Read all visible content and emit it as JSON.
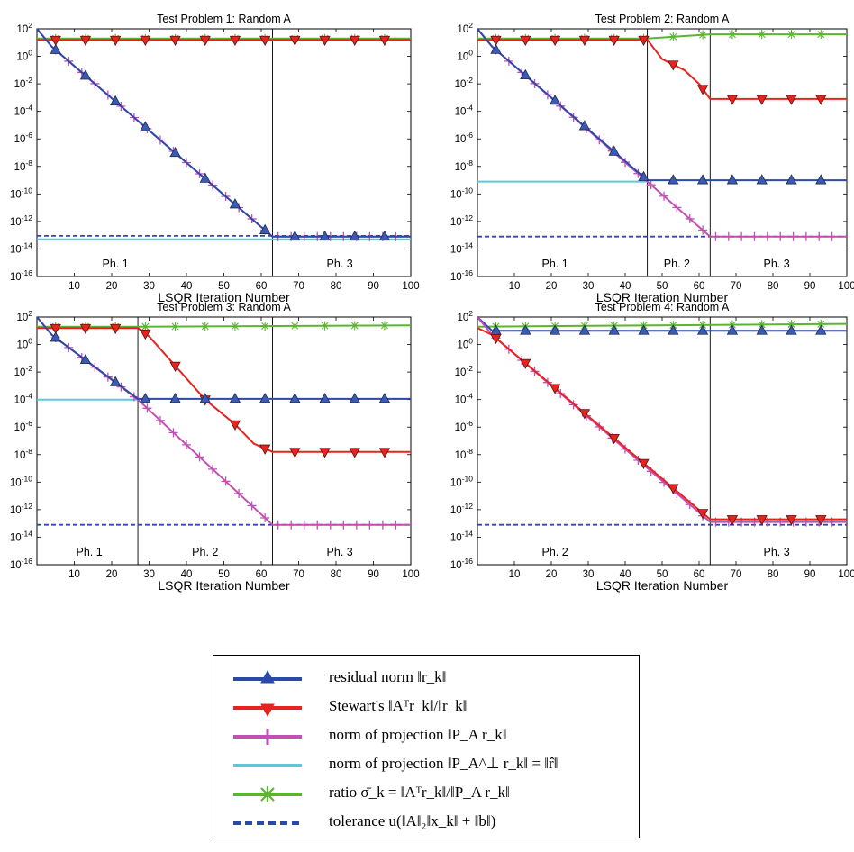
{
  "figure": {
    "legend": [
      {
        "key": "residual",
        "label": "residual norm ‖r_k‖",
        "color": "#2b4aa8",
        "marker": "triangle-up"
      },
      {
        "key": "stewart",
        "label": "Stewart's ‖Aᵀr_k‖/‖r_k‖",
        "color": "#e8231f",
        "marker": "triangle-down"
      },
      {
        "key": "proj",
        "label": "norm of projection ‖P_A r_k‖",
        "color": "#c24fb3",
        "marker": "plus"
      },
      {
        "key": "projperp",
        "label": "norm of projection ‖P_A^⊥ r_k‖ = ‖r̂‖",
        "color": "#5fc8d6",
        "marker": "none"
      },
      {
        "key": "ratio",
        "label": "ratio σ̄_k = ‖Aᵀr_k‖/‖P_A r_k‖",
        "color": "#5cb531",
        "marker": "asterisk"
      },
      {
        "key": "tol",
        "label": "tolerance u(‖A‖₂‖x_k‖ + ‖b‖)",
        "color": "#2b4aa8",
        "marker": "dashed"
      }
    ]
  },
  "chart_data": [
    {
      "type": "line",
      "title": "Test Problem 1: Random A",
      "xlabel": "LSQR Iteration Number",
      "ylabel": "",
      "xlim": [
        0,
        100
      ],
      "ylim_exp": [
        -16,
        2
      ],
      "yscale": "log",
      "xticks": [
        10,
        20,
        30,
        40,
        50,
        60,
        70,
        80,
        90,
        100
      ],
      "yticks_exp": [
        2,
        0,
        -2,
        -4,
        -6,
        -8,
        -10,
        -12,
        -14,
        -16
      ],
      "phase_lines": [
        63
      ],
      "phase_labels": [
        {
          "x": 21,
          "text": "Ph. 1"
        },
        {
          "x": 81,
          "text": "Ph. 3"
        }
      ],
      "series": [
        {
          "key": "ratio",
          "points": [
            [
              0,
              1.3
            ],
            [
              100,
              1.3
            ]
          ],
          "marker_start": 5,
          "marker_step": 8
        },
        {
          "key": "stewart",
          "points": [
            [
              0,
              1.2
            ],
            [
              100,
              1.2
            ]
          ],
          "marker_start": 5,
          "marker_step": 8
        },
        {
          "key": "projperp",
          "points": [
            [
              0,
              -13.3
            ],
            [
              100,
              -13.3
            ]
          ],
          "marker_start": -1,
          "marker_step": 0
        },
        {
          "key": "tol",
          "points": [
            [
              0,
              -13.05
            ],
            [
              100,
              -13.05
            ]
          ],
          "marker_start": -1,
          "marker_step": 0
        },
        {
          "key": "proj",
          "points": [
            [
              0,
              2
            ],
            [
              4,
              0.7
            ],
            [
              63,
              -13.1
            ],
            [
              100,
              -13.1
            ]
          ],
          "marker_start": 5,
          "marker_step": 3.5
        },
        {
          "key": "residual",
          "points": [
            [
              0,
              2
            ],
            [
              4,
              0.7
            ],
            [
              63,
              -13.1
            ],
            [
              100,
              -13.1
            ]
          ],
          "marker_start": 5,
          "marker_step": 8
        }
      ]
    },
    {
      "type": "line",
      "title": "Test Problem 2: Random A",
      "xlabel": "LSQR Iteration Number",
      "ylabel": "",
      "xlim": [
        0,
        100
      ],
      "ylim_exp": [
        -16,
        2
      ],
      "yscale": "log",
      "xticks": [
        10,
        20,
        30,
        40,
        50,
        60,
        70,
        80,
        90,
        100
      ],
      "yticks_exp": [
        2,
        0,
        -2,
        -4,
        -6,
        -8,
        -10,
        -12,
        -14,
        -16
      ],
      "phase_lines": [
        46,
        63
      ],
      "phase_labels": [
        {
          "x": 21,
          "text": "Ph. 1"
        },
        {
          "x": 54,
          "text": "Ph. 2"
        },
        {
          "x": 81,
          "text": "Ph. 3"
        }
      ],
      "series": [
        {
          "key": "ratio",
          "points": [
            [
              0,
              1.3
            ],
            [
              46,
              1.3
            ],
            [
              63,
              1.6
            ],
            [
              100,
              1.6
            ]
          ],
          "marker_start": 5,
          "marker_step": 8
        },
        {
          "key": "stewart",
          "points": [
            [
              0,
              1.2
            ],
            [
              46,
              1.2
            ],
            [
              50,
              -0.2
            ],
            [
              56,
              -1.0
            ],
            [
              60,
              -2.0
            ],
            [
              63,
              -3.1
            ],
            [
              100,
              -3.1
            ]
          ],
          "marker_start": 5,
          "marker_step": 8
        },
        {
          "key": "projperp",
          "points": [
            [
              0,
              -9.1
            ],
            [
              46,
              -9.1
            ]
          ],
          "marker_start": -1,
          "marker_step": 0
        },
        {
          "key": "tol",
          "points": [
            [
              0,
              -13.1
            ],
            [
              100,
              -13.1
            ]
          ],
          "marker_start": -1,
          "marker_step": 0
        },
        {
          "key": "proj",
          "points": [
            [
              0,
              2
            ],
            [
              4,
              0.7
            ],
            [
              46,
              -9.1
            ],
            [
              63,
              -13.1
            ],
            [
              100,
              -13.1
            ]
          ],
          "marker_start": 5,
          "marker_step": 3.5
        },
        {
          "key": "residual",
          "points": [
            [
              0,
              2
            ],
            [
              4,
              0.7
            ],
            [
              46,
              -9.0
            ],
            [
              100,
              -9.0
            ]
          ],
          "marker_start": 5,
          "marker_step": 8
        }
      ]
    },
    {
      "type": "line",
      "title": "Test Problem 3: Random A",
      "xlabel": "LSQR Iteration Number",
      "ylabel": "",
      "xlim": [
        0,
        100
      ],
      "ylim_exp": [
        -16,
        2
      ],
      "yscale": "log",
      "xticks": [
        10,
        20,
        30,
        40,
        50,
        60,
        70,
        80,
        90,
        100
      ],
      "yticks_exp": [
        2,
        0,
        -2,
        -4,
        -6,
        -8,
        -10,
        -12,
        -14,
        -16
      ],
      "phase_lines": [
        27,
        63
      ],
      "phase_labels": [
        {
          "x": 14,
          "text": "Ph. 1"
        },
        {
          "x": 45,
          "text": "Ph. 2"
        },
        {
          "x": 81,
          "text": "Ph. 3"
        }
      ],
      "series": [
        {
          "key": "ratio",
          "points": [
            [
              0,
              1.3
            ],
            [
              27,
              1.3
            ],
            [
              100,
              1.4
            ]
          ],
          "marker_start": 5,
          "marker_step": 8
        },
        {
          "key": "stewart",
          "points": [
            [
              0,
              1.2
            ],
            [
              27,
              1.2
            ],
            [
              30,
              0.6
            ],
            [
              45,
              -4.0
            ],
            [
              53,
              -5.8
            ],
            [
              58,
              -7.2
            ],
            [
              63,
              -7.8
            ],
            [
              100,
              -7.8
            ]
          ],
          "marker_start": 5,
          "marker_step": 8
        },
        {
          "key": "projperp",
          "points": [
            [
              0,
              -4.0
            ],
            [
              27,
              -4.0
            ]
          ],
          "marker_start": -1,
          "marker_step": 0
        },
        {
          "key": "tol",
          "points": [
            [
              0,
              -13.1
            ],
            [
              100,
              -13.1
            ]
          ],
          "marker_start": -1,
          "marker_step": 0
        },
        {
          "key": "proj",
          "points": [
            [
              0,
              2
            ],
            [
              4,
              0.7
            ],
            [
              27,
              -4.0
            ],
            [
              63,
              -13.1
            ],
            [
              100,
              -13.1
            ]
          ],
          "marker_start": 5,
          "marker_step": 3.5
        },
        {
          "key": "residual",
          "points": [
            [
              0,
              2
            ],
            [
              4,
              0.7
            ],
            [
              27,
              -3.95
            ],
            [
              100,
              -3.95
            ]
          ],
          "marker_start": 5,
          "marker_step": 8
        }
      ]
    },
    {
      "type": "line",
      "title": "Test Problem 4: Random A",
      "xlabel": "LSQR Iteration Number",
      "ylabel": "",
      "xlim": [
        0,
        100
      ],
      "ylim_exp": [
        -16,
        2
      ],
      "yscale": "log",
      "xticks": [
        10,
        20,
        30,
        40,
        50,
        60,
        70,
        80,
        90,
        100
      ],
      "yticks_exp": [
        2,
        0,
        -2,
        -4,
        -6,
        -8,
        -10,
        -12,
        -14,
        -16
      ],
      "phase_lines": [
        63
      ],
      "phase_labels": [
        {
          "x": 21,
          "text": "Ph. 2"
        },
        {
          "x": 81,
          "text": "Ph. 3"
        }
      ],
      "series": [
        {
          "key": "ratio",
          "points": [
            [
              0,
              1.3
            ],
            [
              100,
              1.5
            ]
          ],
          "marker_start": 5,
          "marker_step": 8
        },
        {
          "key": "residual",
          "points": [
            [
              0,
              2
            ],
            [
              4,
              1.0
            ],
            [
              100,
              1.0
            ]
          ],
          "marker_start": 5,
          "marker_step": 8
        },
        {
          "key": "tol",
          "points": [
            [
              0,
              -13.1
            ],
            [
              100,
              -13.1
            ]
          ],
          "marker_start": -1,
          "marker_step": 0
        },
        {
          "key": "proj",
          "points": [
            [
              0,
              2
            ],
            [
              4,
              0.7
            ],
            [
              63,
              -12.9
            ],
            [
              100,
              -12.9
            ]
          ],
          "marker_start": 5,
          "marker_step": 3.5
        },
        {
          "key": "stewart",
          "points": [
            [
              0,
              1.2
            ],
            [
              4,
              0.7
            ],
            [
              63,
              -12.7
            ],
            [
              100,
              -12.7
            ]
          ],
          "marker_start": 5,
          "marker_step": 8
        }
      ]
    }
  ]
}
